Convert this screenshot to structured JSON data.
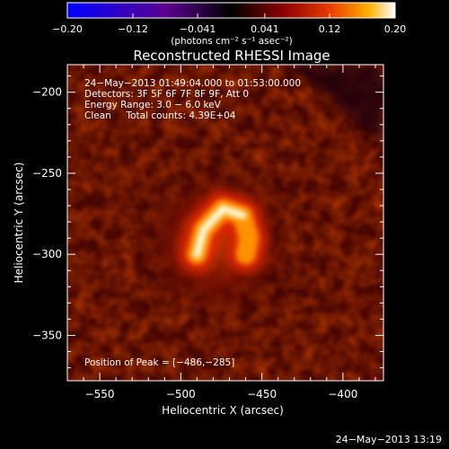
{
  "chart_data": {
    "type": "heatmap",
    "title": "Reconstructed RHESSI Image",
    "xlabel": "Heliocentric X (arcsec)",
    "ylabel": "Heliocentric Y (arcsec)",
    "xlim": [
      -570,
      -375
    ],
    "ylim": [
      -378,
      -183
    ],
    "x_ticks": [
      -550,
      -500,
      -450,
      -400
    ],
    "y_ticks": [
      -200,
      -250,
      -300,
      -350
    ],
    "x_tick_labels": [
      "−550",
      "−500",
      "−450",
      "−400"
    ],
    "y_tick_labels": [
      "−200",
      "−250",
      "−300",
      "−350"
    ],
    "colorbar": {
      "range": [
        -0.2,
        0.2
      ],
      "ticks": [
        -0.2,
        -0.12,
        -0.041,
        0.041,
        0.12,
        0.2
      ],
      "tick_labels": [
        "−0.20",
        "−0.12",
        "−0.041",
        "0.041",
        "0.12",
        "0.20"
      ],
      "units_label": "(photons cm⁻² s⁻¹ asec⁻²)",
      "colors": [
        "#0000ff",
        "#5a0090",
        "#000000",
        "#8c0000",
        "#e83c00",
        "#ffb000",
        "#ffffff"
      ]
    },
    "annotations": [
      "24−May−2013 01:49:04.000 to 01:53:00.000",
      "Detectors: 3F 5F 6F 7F 8F 9F, Att 0",
      "Energy Range: 3.0 − 6.0 keV",
      "Clean     Total counts: 4.39E+04"
    ],
    "peak_label": "Position of Peak = [−486,−285]",
    "peak_position": [
      -486,
      -285
    ],
    "source_arc": [
      [
        -490,
        -300
      ],
      [
        -486,
        -285
      ],
      [
        -474,
        -272
      ],
      [
        -462,
        -276
      ],
      [
        -458,
        -290
      ],
      [
        -460,
        -300
      ]
    ]
  },
  "footer": {
    "timestamp": "24−May−2013 13:19"
  }
}
